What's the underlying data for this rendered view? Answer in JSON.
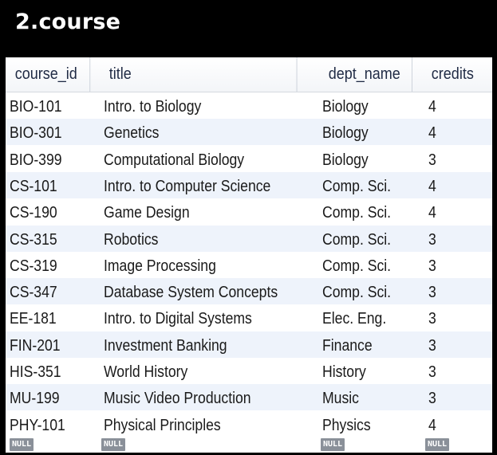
{
  "page_title": "2.course",
  "columns": [
    "course_id",
    "title",
    "dept_name",
    "credits"
  ],
  "rows": [
    {
      "course_id": "BIO-101",
      "title": "Intro. to Biology",
      "dept_name": "Biology",
      "credits": "4"
    },
    {
      "course_id": "BIO-301",
      "title": "Genetics",
      "dept_name": "Biology",
      "credits": "4"
    },
    {
      "course_id": "BIO-399",
      "title": "Computational Biology",
      "dept_name": "Biology",
      "credits": "3"
    },
    {
      "course_id": "CS-101",
      "title": "Intro. to Computer Science",
      "dept_name": "Comp. Sci.",
      "credits": "4"
    },
    {
      "course_id": "CS-190",
      "title": "Game Design",
      "dept_name": "Comp. Sci.",
      "credits": "4"
    },
    {
      "course_id": "CS-315",
      "title": "Robotics",
      "dept_name": "Comp. Sci.",
      "credits": "3"
    },
    {
      "course_id": "CS-319",
      "title": "Image Processing",
      "dept_name": "Comp. Sci.",
      "credits": "3"
    },
    {
      "course_id": "CS-347",
      "title": "Database System Concepts",
      "dept_name": "Comp. Sci.",
      "credits": "3"
    },
    {
      "course_id": "EE-181",
      "title": "Intro. to Digital Systems",
      "dept_name": "Elec. Eng.",
      "credits": "3"
    },
    {
      "course_id": "FIN-201",
      "title": "Investment Banking",
      "dept_name": "Finance",
      "credits": "3"
    },
    {
      "course_id": "HIS-351",
      "title": "World History",
      "dept_name": "History",
      "credits": "3"
    },
    {
      "course_id": "MU-199",
      "title": "Music Video Production",
      "dept_name": "Music",
      "credits": "3"
    },
    {
      "course_id": "PHY-101",
      "title": "Physical Principles",
      "dept_name": "Physics",
      "credits": "4"
    }
  ],
  "null_label": "NULL",
  "colors": {
    "background": "#000000",
    "header_text": "#1f2a44",
    "row_alt": "#eef3fb",
    "null_badge": "#8a9099"
  }
}
